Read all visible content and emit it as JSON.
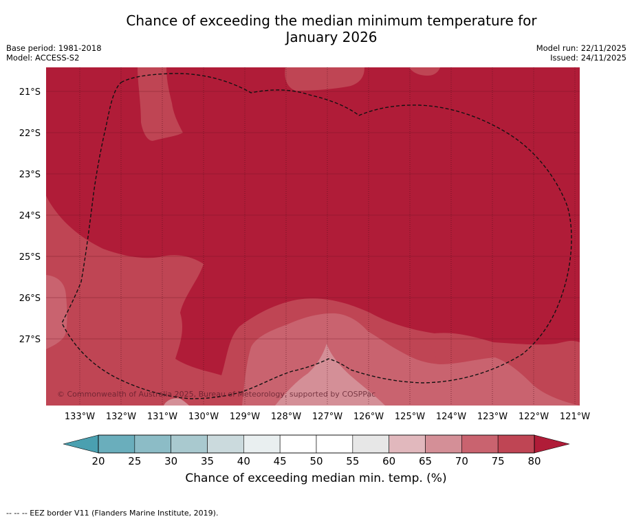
{
  "title": {
    "line1": "Chance of exceeding the median minimum temperature for",
    "line2": "January 2026"
  },
  "meta": {
    "base_period": "Base period: 1981-2018",
    "model": "Model: ACCESS-S2",
    "model_run": "Model run: 22/11/2025",
    "issued": "Issued: 24/11/2025"
  },
  "map": {
    "lat_labels": [
      "21°S",
      "22°S",
      "23°S",
      "24°S",
      "25°S",
      "26°S",
      "27°S"
    ],
    "lon_labels": [
      "133°W",
      "132°W",
      "131°W",
      "130°W",
      "129°W",
      "128°W",
      "127°W",
      "126°W",
      "125°W",
      "124°W",
      "123°W",
      "122°W",
      "121°W"
    ],
    "copyright": "© Commonwealth of Australia 2025, Bureau of Meteorology, supported by COSPPac"
  },
  "colorbar": {
    "ticks": [
      "20",
      "25",
      "30",
      "35",
      "40",
      "45",
      "50",
      "55",
      "60",
      "65",
      "70",
      "75",
      "80"
    ],
    "colors": [
      "#6aaebc",
      "#8cbcc6",
      "#a9c9cf",
      "#cbdadd",
      "#e9eff0",
      "#ffffff",
      "#ffffff",
      "#e7e7e7",
      "#e1b8bd",
      "#d48f97",
      "#c9636f",
      "#bf4554"
    ],
    "under_color": "#4aa0b0",
    "over_color": "#b01c38",
    "label": "Chance of exceeding median min. temp. (%)"
  },
  "colors": {
    "c80": "#b01c38",
    "c75": "#bf4554",
    "c70": "#c9636f",
    "c65": "#d48f97",
    "c60": "#e1b8bd"
  },
  "footnote": "-- -- -- EEZ border V11 (Flanders Marine Institute, 2019)."
}
